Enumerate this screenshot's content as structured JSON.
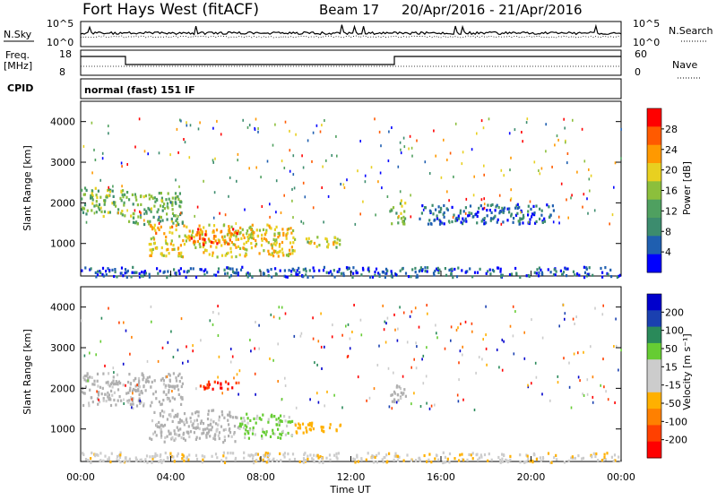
{
  "header": {
    "station": "Fort Hays West (fitACF)",
    "beam": "Beam 17",
    "date_range": "20/Apr/2016 - 21/Apr/2016"
  },
  "top_panels": {
    "nsky_label": "N.Sky",
    "nsky_ticks": [
      "10^5",
      "10^0"
    ],
    "nsearch_label": "N.Search",
    "nsearch_ticks": [
      "10^5",
      "10^0"
    ],
    "freq_label": "Freq.",
    "freq_unit": "[MHz]",
    "freq_ticks": [
      "18",
      "8"
    ],
    "nave_label": "Nave",
    "nave_ticks": [
      "60",
      "0"
    ],
    "cpid_label": "CPID",
    "cpid_value": "normal (fast) 151 IF"
  },
  "colors": {
    "power_scale": [
      "#0000ff",
      "#1f5fb0",
      "#3c8c6e",
      "#4fa060",
      "#8cbf3c",
      "#e8d020",
      "#ff9900",
      "#ff5a00",
      "#ff0000"
    ],
    "velocity_scale": [
      "#ff0000",
      "#ff4000",
      "#ff8000",
      "#ffb000",
      "#cccccc",
      "#cccccc",
      "#66cc33",
      "#2a8a5a",
      "#1a40b0",
      "#0000cc"
    ],
    "ground_scatter": "#b0b0b0"
  },
  "chart_data": [
    {
      "type": "heatmap",
      "name": "power",
      "ylabel": "Slant Range [km]",
      "xlabel": "Time UT",
      "ylim": [
        200,
        4500
      ],
      "yticks": [
        "1000",
        "2000",
        "3000",
        "4000"
      ],
      "xticks": [
        "00:00",
        "04:00",
        "08:00",
        "12:00",
        "16:00",
        "20:00",
        "00:00"
      ],
      "colorbar_label": "Power [dB]",
      "colorbar_ticks": [
        "4",
        "8",
        "12",
        "16",
        "20",
        "24",
        "28"
      ],
      "colorbar_range": [
        0,
        32
      ],
      "regions": [
        {
          "t0": 0.0,
          "t1": 2.0,
          "r0": 1700,
          "r1": 2400,
          "value": 14
        },
        {
          "t0": 2.0,
          "t1": 4.5,
          "r0": 1500,
          "r1": 2300,
          "value": 14
        },
        {
          "t0": 3.0,
          "t1": 9.5,
          "r0": 700,
          "r1": 1500,
          "value": 20
        },
        {
          "t0": 4.8,
          "t1": 7.0,
          "r0": 1000,
          "r1": 1400,
          "value": 26
        },
        {
          "t0": 9.8,
          "t1": 11.5,
          "r0": 900,
          "r1": 1200,
          "value": 18
        },
        {
          "t0": 13.7,
          "t1": 14.4,
          "r0": 1500,
          "r1": 2100,
          "value": 14
        },
        {
          "t0": 15.0,
          "t1": 21.0,
          "r0": 1500,
          "r1": 2000,
          "value": 6
        },
        {
          "t0": 0.0,
          "t1": 24.0,
          "r0": 200,
          "r1": 450,
          "value": 5
        }
      ]
    },
    {
      "type": "heatmap",
      "name": "velocity",
      "ylabel": "Slant Range [km]",
      "xlabel": "Time UT",
      "ylim": [
        200,
        4500
      ],
      "yticks": [
        "1000",
        "2000",
        "3000",
        "4000"
      ],
      "xticks": [
        "00:00",
        "04:00",
        "08:00",
        "12:00",
        "16:00",
        "20:00",
        "00:00"
      ],
      "colorbar_label": "Velocity [m s⁻¹]",
      "colorbar_ticks": [
        "200",
        "100",
        "50",
        "15",
        "-15",
        "-50",
        "-100",
        "-200"
      ],
      "colorbar_range": [
        -250,
        250
      ],
      "regions": [
        {
          "t0": 0.0,
          "t1": 4.5,
          "r0": 1600,
          "r1": 2400,
          "value": 0
        },
        {
          "t0": 3.0,
          "t1": 7.0,
          "r0": 700,
          "r1": 1500,
          "value": 0
        },
        {
          "t0": 7.0,
          "t1": 9.5,
          "r0": 800,
          "r1": 1400,
          "value": 60
        },
        {
          "t0": 9.5,
          "t1": 11.5,
          "r0": 900,
          "r1": 1200,
          "value": -80
        },
        {
          "t0": 5.0,
          "t1": 7.0,
          "r0": 2000,
          "r1": 2200,
          "value": -200
        },
        {
          "t0": 13.7,
          "t1": 14.4,
          "r0": 1500,
          "r1": 2100,
          "value": 0
        },
        {
          "t0": 0.0,
          "t1": 24.0,
          "r0": 200,
          "r1": 450,
          "value": -40
        }
      ]
    }
  ]
}
